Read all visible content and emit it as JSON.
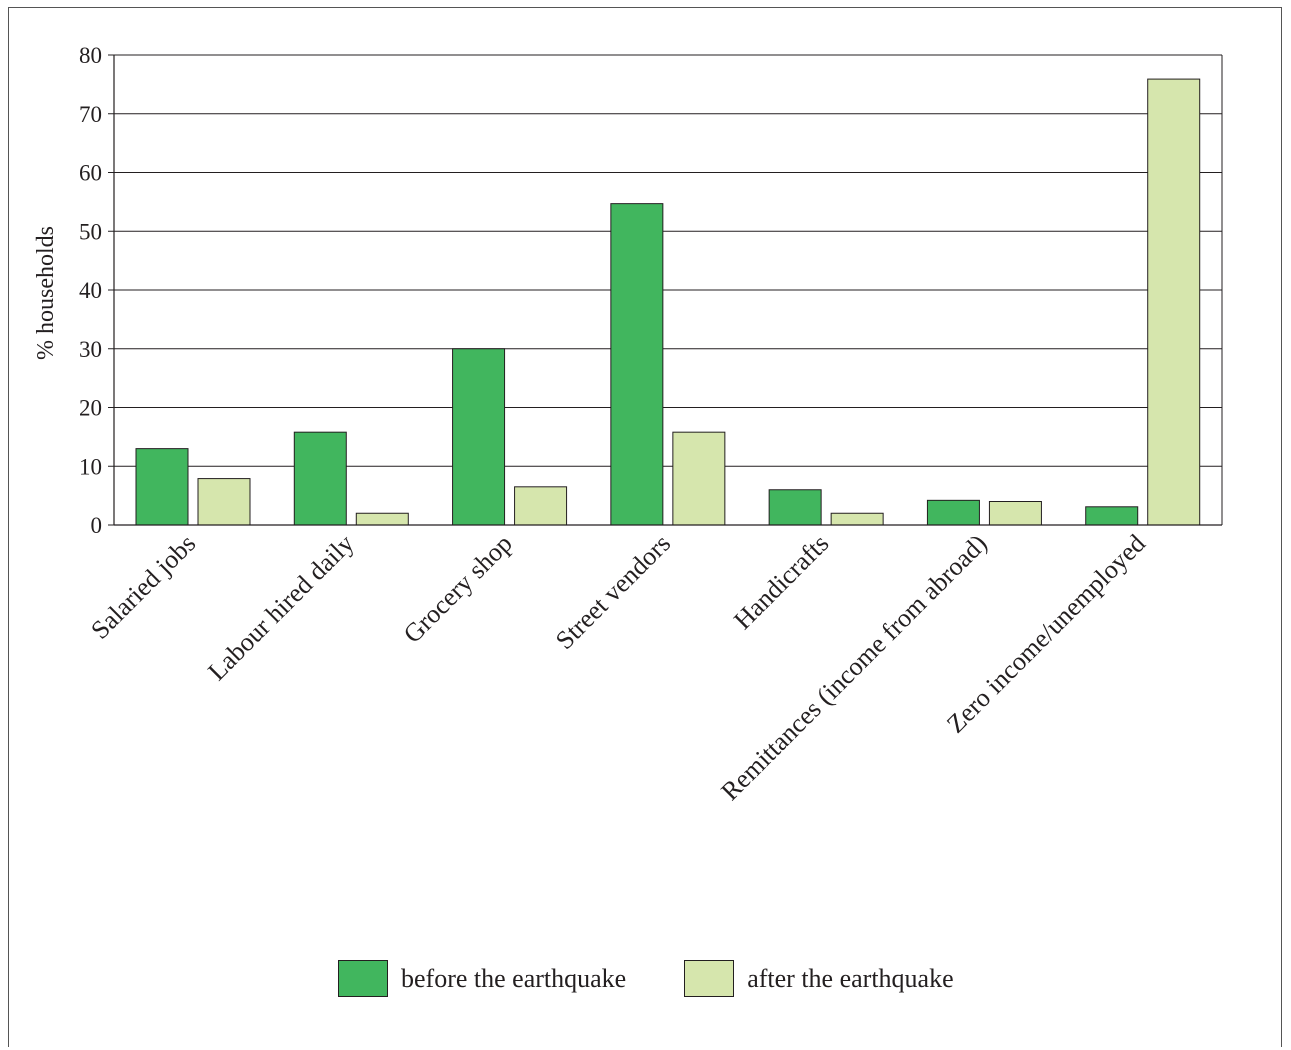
{
  "chart_data": {
    "type": "bar",
    "title": "",
    "xlabel": "",
    "ylabel": "% households",
    "ylim": [
      0,
      80
    ],
    "yticks": [
      0,
      10,
      20,
      30,
      40,
      50,
      60,
      70,
      80
    ],
    "grid": true,
    "legend_position": "bottom-center",
    "categories": [
      "Salaried jobs",
      "Labour hired daily",
      "Grocery shop",
      "Street vendors",
      "Handicrafts",
      "Remittances (income from abroad)",
      "Zero income/unemployed"
    ],
    "series": [
      {
        "name": "before the earthquake",
        "color": "#41b65e",
        "values": [
          13,
          15.8,
          30,
          54.7,
          6,
          4.2,
          3.1
        ]
      },
      {
        "name": "after the earthquake",
        "color": "#d6e6ad",
        "values": [
          7.9,
          2,
          6.5,
          15.8,
          2,
          4,
          75.9
        ]
      }
    ]
  }
}
